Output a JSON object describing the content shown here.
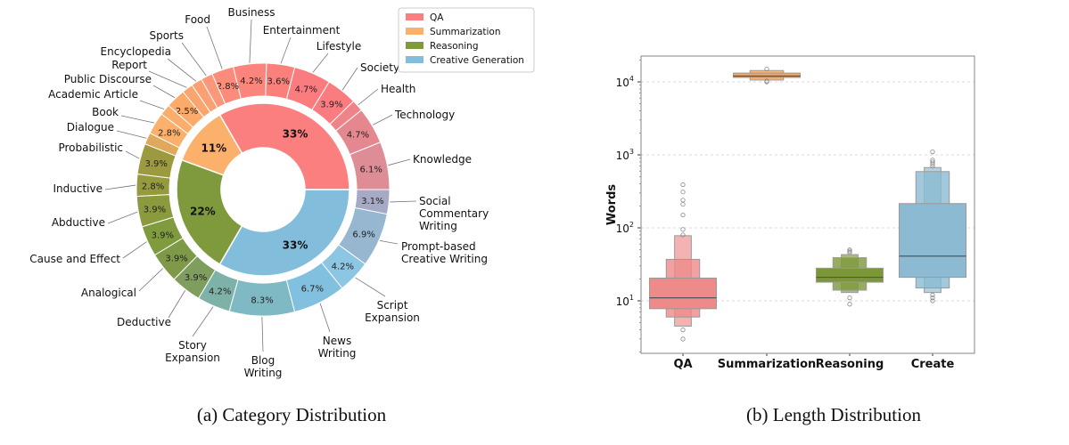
{
  "captions": {
    "a": "(a) Category Distribution",
    "b": "(b) Length Distribution"
  },
  "chart_data": [
    {
      "type": "pie",
      "subtype": "nested-donut",
      "legend": {
        "placement": "top-right",
        "entries": [
          {
            "name": "QA",
            "color": "#fb7f7f"
          },
          {
            "name": "Summarization",
            "color": "#fbb06b"
          },
          {
            "name": "Reasoning",
            "color": "#7f9a3c"
          },
          {
            "name": "Creative Generation",
            "color": "#82bedc"
          }
        ]
      },
      "inner": [
        {
          "name": "QA",
          "value": 33,
          "label": "33%",
          "color": "#fb7f7f"
        },
        {
          "name": "Summarization",
          "value": 11,
          "label": "11%",
          "color": "#fbb06b"
        },
        {
          "name": "Reasoning",
          "value": 22,
          "label": "22%",
          "color": "#7f9a3c"
        },
        {
          "name": "Creative Generation",
          "value": 33,
          "label": "33%",
          "color": "#82bedc"
        }
      ],
      "outer": [
        {
          "name": "Knowledge",
          "value": 6.1,
          "label": "6.1%",
          "color": "#de8d96"
        },
        {
          "name": "Technology",
          "value": 4.7,
          "label": "4.7%",
          "color": "#e5878e"
        },
        {
          "name": "Health",
          "value": 1.5,
          "label": "",
          "color": "#ee8488"
        },
        {
          "name": "Society",
          "value": 3.9,
          "label": "3.9%",
          "color": "#fb7c80"
        },
        {
          "name": "Lifestyle",
          "value": 4.7,
          "label": "4.7%",
          "color": "#fb7c7e"
        },
        {
          "name": "Entertainment",
          "value": 3.6,
          "label": "3.6%",
          "color": "#fb807c"
        },
        {
          "name": "Business",
          "value": 4.2,
          "label": "4.2%",
          "color": "#fb857c"
        },
        {
          "name": "Food",
          "value": 2.8,
          "label": "2.8%",
          "color": "#fb8c7c"
        },
        {
          "name": "Sports",
          "value": 1.5,
          "label": "",
          "color": "#fb977a"
        },
        {
          "name": "Encyclopedia",
          "value": 1.4,
          "label": "",
          "color": "#fba072"
        },
        {
          "name": "Report",
          "value": 1.4,
          "label": "",
          "color": "#fba56e"
        },
        {
          "name": "Public Discourse",
          "value": 2.5,
          "label": "2.5%",
          "color": "#fbaa6b"
        },
        {
          "name": "Academic Article",
          "value": 1.4,
          "label": "",
          "color": "#fbad6b"
        },
        {
          "name": "Book",
          "value": 2.8,
          "label": "2.8%",
          "color": "#fbb06b"
        },
        {
          "name": "Dialogue",
          "value": 1.5,
          "label": "",
          "color": "#e0a85a"
        },
        {
          "name": "Probabilistic",
          "value": 3.9,
          "label": "3.9%",
          "color": "#9b9a3f"
        },
        {
          "name": "Inductive",
          "value": 2.8,
          "label": "2.8%",
          "color": "#959a3e"
        },
        {
          "name": "Abductive",
          "value": 3.9,
          "label": "3.9%",
          "color": "#8a9a3c"
        },
        {
          "name": "Cause and Effect",
          "value": 3.9,
          "label": "3.9%",
          "color": "#809a3e"
        },
        {
          "name": "Analogical",
          "value": 3.9,
          "label": "3.9%",
          "color": "#7e9a48"
        },
        {
          "name": "Deductive",
          "value": 3.9,
          "label": "3.9%",
          "color": "#7f9e5e"
        },
        {
          "name": "Story\nExpansion",
          "value": 4.2,
          "label": "4.2%",
          "color": "#7eb2a8"
        },
        {
          "name": "Blog\nWriting",
          "value": 8.3,
          "label": "8.3%",
          "color": "#7fbac4"
        },
        {
          "name": "News\nWriting",
          "value": 6.7,
          "label": "6.7%",
          "color": "#82c0df"
        },
        {
          "name": "Script\nExpansion",
          "value": 4.2,
          "label": "4.2%",
          "color": "#8cc6e2"
        },
        {
          "name": "Prompt-based\nCreative Writing",
          "value": 6.9,
          "label": "6.9%",
          "color": "#97b6cf"
        },
        {
          "name": "Social\nCommentary\nWriting",
          "value": 3.1,
          "label": "3.1%",
          "color": "#a6aac4"
        }
      ]
    },
    {
      "type": "boxen",
      "ylabel": "Words",
      "xlabel": "",
      "yscale": "log",
      "ylim": [
        1.9,
        22000
      ],
      "yticks": [
        {
          "base": "10",
          "exp": "1",
          "value": 10
        },
        {
          "base": "10",
          "exp": "2",
          "value": 100
        },
        {
          "base": "10",
          "exp": "3",
          "value": 1000
        },
        {
          "base": "10",
          "exp": "4",
          "value": 10000
        }
      ],
      "grid": "horizontal dashed",
      "categories": [
        "QA",
        "Summarization",
        "Reasoning",
        "Create"
      ],
      "series": [
        {
          "category": "QA",
          "color": "#ee8a8a",
          "median": 11,
          "levels": [
            [
              7.8,
              20.5
            ],
            [
              6,
              37
            ],
            [
              4.5,
              78
            ]
          ],
          "outliers": [
            3,
            4,
            80,
            95,
            150,
            210,
            240,
            310,
            390
          ]
        },
        {
          "category": "Summarization",
          "color": "#f5a55c",
          "median": 12000,
          "levels": [
            [
              11500,
              13200
            ],
            [
              10600,
              14300
            ]
          ],
          "outliers": [
            10000,
            10300,
            15000
          ]
        },
        {
          "category": "Reasoning",
          "color": "#7c973a",
          "median": 21,
          "levels": [
            [
              18,
              28
            ],
            [
              14,
              39
            ],
            [
              13,
              43
            ]
          ],
          "outliers": [
            9,
            11,
            46,
            48,
            50
          ]
        },
        {
          "category": "Create",
          "color": "#8bbad2",
          "median": 41,
          "levels": [
            [
              21,
              215
            ],
            [
              15,
              590
            ],
            [
              13,
              670
            ]
          ],
          "outliers": [
            10,
            11,
            12,
            700,
            750,
            800,
            850,
            1100
          ]
        }
      ]
    }
  ]
}
